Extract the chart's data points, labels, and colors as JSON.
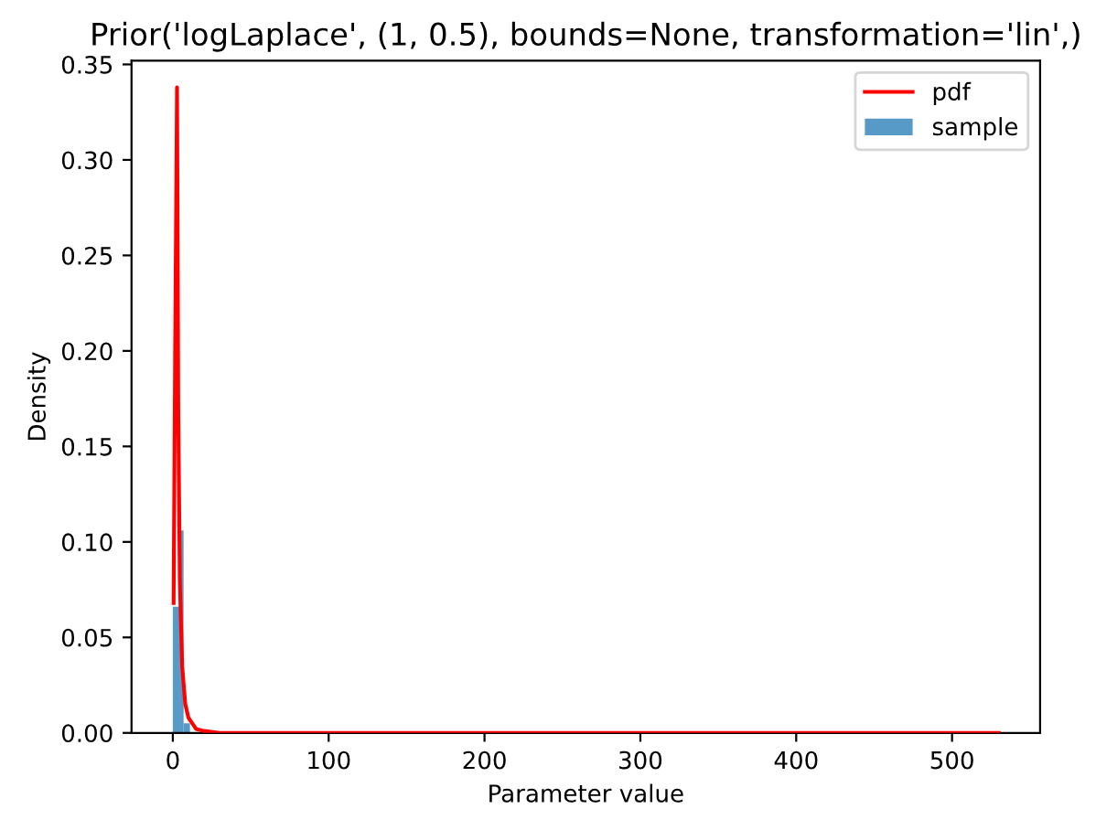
{
  "chart_data": {
    "type": "histogram",
    "title": "Prior('logLaplace', (1, 0.5), bounds=None, transformation='lin',)",
    "xlabel": "Parameter value",
    "ylabel": "Density",
    "series": [
      {
        "name": "pdf",
        "type": "line",
        "color": "#ff0000",
        "x": [
          0.5,
          1.5,
          2.7,
          3.5,
          4.5,
          6,
          8,
          10,
          15,
          20,
          30,
          50,
          100,
          200,
          300,
          400,
          530
        ],
        "values": [
          0.068,
          0.2,
          0.338,
          0.17,
          0.08,
          0.035,
          0.015,
          0.008,
          0.002,
          0.001,
          0,
          0,
          0,
          0,
          0,
          0,
          0
        ]
      },
      {
        "name": "sample",
        "color": "#5799c7",
        "bins": [
          0,
          4.2,
          6.9,
          11
        ],
        "values": [
          0.066,
          0.106,
          0.005
        ]
      }
    ],
    "xlim": [
      -26.5,
      556.5
    ],
    "xticks": [
      0,
      100,
      200,
      300,
      400,
      500
    ],
    "ylim": [
      0,
      0.352
    ],
    "yticks": [
      {
        "value": 0,
        "label": "0.00"
      },
      {
        "value": 0.05,
        "label": "0.05"
      },
      {
        "value": 0.1,
        "label": "0.10"
      },
      {
        "value": 0.15,
        "label": "0.15"
      },
      {
        "value": 0.2,
        "label": "0.20"
      },
      {
        "value": 0.25,
        "label": "0.25"
      },
      {
        "value": 0.3,
        "label": "0.30"
      },
      {
        "value": 0.35,
        "label": "0.35"
      }
    ],
    "legend": "top right",
    "grid": false
  }
}
